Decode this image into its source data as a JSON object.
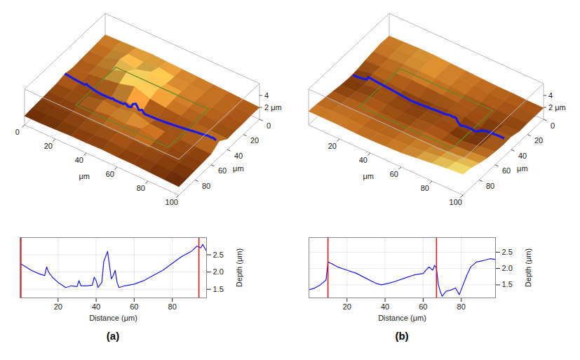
{
  "chart_data": [
    {
      "type": "surface3d",
      "xlim": [
        0,
        100
      ],
      "ylim": [
        0,
        100
      ],
      "zlim": [
        0,
        6
      ],
      "xticks": [
        0,
        20,
        40,
        60,
        80,
        100
      ],
      "yticks": [
        0,
        20,
        40,
        60,
        80
      ],
      "zticks": [
        {
          "value": 2,
          "label": "2 μm"
        },
        4
      ],
      "x_label": "μm",
      "y_label": "μm",
      "x": [
        0,
        10,
        20,
        30,
        40,
        50,
        60,
        70,
        80,
        90,
        100
      ],
      "y": [
        0,
        10,
        20,
        30,
        40,
        50,
        60,
        70,
        80,
        90,
        100
      ],
      "z": [
        [
          2.4,
          2.5,
          2.6,
          2.7,
          2.6,
          2.5,
          2.4,
          2.3,
          2.2,
          2.1,
          2.0
        ],
        [
          2.3,
          2.4,
          2.8,
          2.6,
          2.9,
          2.5,
          2.4,
          2.3,
          2.2,
          2.1,
          2.0
        ],
        [
          2.2,
          2.3,
          3.2,
          2.7,
          3.4,
          2.6,
          2.5,
          2.3,
          2.2,
          2.0,
          1.9
        ],
        [
          2.1,
          2.2,
          2.6,
          3.6,
          2.8,
          3.0,
          2.4,
          2.2,
          2.1,
          2.0,
          1.9
        ],
        [
          2.0,
          2.1,
          2.4,
          2.8,
          3.5,
          2.6,
          2.3,
          2.1,
          2.0,
          1.9,
          1.8
        ],
        [
          2.2,
          1.9,
          1.6,
          1.7,
          2.2,
          1.6,
          1.7,
          1.9,
          2.2,
          2.5,
          2.7
        ],
        [
          1.9,
          1.9,
          2.0,
          2.5,
          2.3,
          2.9,
          2.2,
          2.0,
          1.9,
          1.8,
          1.8
        ],
        [
          1.8,
          1.8,
          1.9,
          2.1,
          2.4,
          2.2,
          2.6,
          2.0,
          1.9,
          1.8,
          1.7
        ],
        [
          1.7,
          1.7,
          1.8,
          1.9,
          2.0,
          2.1,
          2.0,
          1.9,
          1.8,
          1.7,
          1.6
        ],
        [
          1.6,
          1.6,
          1.7,
          1.8,
          1.8,
          1.9,
          1.8,
          1.8,
          1.7,
          1.6,
          1.5
        ],
        [
          1.5,
          1.5,
          1.6,
          1.7,
          1.7,
          1.8,
          1.7,
          1.7,
          1.6,
          1.5,
          1.4
        ]
      ],
      "roi": {
        "x": [
          20,
          80
        ],
        "y": [
          25,
          75
        ],
        "z": 2.5
      },
      "profile_y": 50
    },
    {
      "type": "line",
      "panel_label": "(a)",
      "x_label": "Distance (μm)",
      "y_label": "Depth (μm)",
      "xlim": [
        0,
        98
      ],
      "ylim": [
        1.25,
        3.0
      ],
      "xticks": [
        20,
        40,
        60,
        80
      ],
      "yticks": [
        1.5,
        {
          "value": 2,
          "label": "2.0"
        },
        2.5
      ],
      "grid": true,
      "color": "#1a1aee",
      "x": [
        0,
        3,
        6,
        10,
        13,
        14,
        15,
        17,
        20,
        24,
        27,
        30,
        31,
        32,
        35,
        38,
        39,
        40,
        41,
        43,
        44,
        45,
        46,
        47,
        48,
        49,
        50,
        51,
        52,
        55,
        60,
        65,
        70,
        75,
        80,
        85,
        90,
        93,
        95,
        96,
        98
      ],
      "values": [
        2.25,
        2.15,
        2.05,
        1.95,
        1.9,
        2.15,
        2.0,
        1.85,
        1.7,
        1.55,
        1.6,
        1.58,
        1.75,
        1.6,
        1.6,
        1.62,
        1.85,
        1.75,
        1.55,
        1.7,
        2.3,
        2.45,
        2.6,
        2.2,
        1.8,
        1.9,
        2.05,
        1.7,
        1.55,
        1.6,
        1.65,
        1.75,
        1.9,
        2.05,
        2.25,
        2.45,
        2.6,
        2.75,
        2.7,
        2.8,
        2.6
      ],
      "cursors": {
        "values": [
          0.5,
          94
        ],
        "color": "#e31a1c"
      }
    },
    {
      "type": "surface3d",
      "xlim": [
        0,
        100
      ],
      "ylim": [
        0,
        100
      ],
      "zlim": [
        0,
        6
      ],
      "xticks": [
        20,
        40,
        60,
        80,
        100
      ],
      "yticks": [
        0,
        20,
        40,
        60,
        80
      ],
      "zticks": [
        {
          "value": 2,
          "label": "2 μm"
        },
        4
      ],
      "x_label": "μm",
      "y_label": "μm",
      "x": [
        0,
        10,
        20,
        30,
        40,
        50,
        60,
        70,
        80,
        90,
        100
      ],
      "y": [
        0,
        10,
        20,
        30,
        40,
        50,
        60,
        70,
        80,
        90,
        100
      ],
      "z": [
        [
          2.2,
          2.3,
          2.4,
          2.4,
          2.3,
          2.2,
          2.1,
          2.0,
          2.0,
          1.9,
          1.9
        ],
        [
          2.3,
          2.4,
          2.5,
          2.6,
          2.4,
          2.3,
          2.2,
          2.1,
          2.0,
          1.9,
          1.9
        ],
        [
          2.1,
          2.2,
          2.3,
          2.4,
          2.3,
          2.2,
          2.0,
          1.9,
          1.8,
          1.8,
          1.9
        ],
        [
          1.9,
          2.0,
          2.1,
          2.2,
          2.1,
          2.0,
          1.9,
          1.8,
          1.7,
          1.6,
          1.8
        ],
        [
          1.6,
          2.1,
          1.9,
          1.7,
          1.6,
          1.7,
          1.9,
          2.0,
          1.4,
          1.9,
          2.2
        ],
        [
          1.5,
          1.6,
          1.8,
          1.7,
          1.6,
          1.7,
          1.8,
          1.5,
          1.3,
          1.8,
          2.1
        ],
        [
          1.6,
          1.7,
          1.9,
          1.8,
          1.7,
          1.8,
          1.9,
          1.7,
          1.5,
          1.9,
          2.2
        ],
        [
          1.8,
          1.9,
          2.0,
          1.9,
          1.8,
          1.9,
          2.0,
          1.9,
          2.0,
          2.2,
          2.4
        ],
        [
          2.0,
          2.1,
          2.1,
          2.0,
          2.0,
          2.1,
          2.2,
          2.2,
          2.4,
          2.6,
          2.8
        ],
        [
          2.2,
          2.2,
          2.2,
          2.1,
          2.1,
          2.2,
          2.3,
          2.5,
          2.8,
          3.1,
          3.3
        ],
        [
          2.3,
          2.3,
          2.3,
          2.2,
          2.2,
          2.3,
          2.4,
          2.7,
          3.0,
          3.3,
          3.5
        ]
      ],
      "roi": {
        "x": [
          20,
          80
        ],
        "y": [
          25,
          75
        ],
        "z": 2.3
      },
      "profile_y": 45
    },
    {
      "type": "line",
      "panel_label": "(b)",
      "x_label": "Distance (μm)",
      "y_label": "Depth (μm)",
      "xlim": [
        0,
        98
      ],
      "ylim": [
        1.1,
        2.95
      ],
      "xticks": [
        20,
        40,
        60,
        80
      ],
      "yticks": [
        1.5,
        {
          "value": 2,
          "label": "2.0"
        },
        2.5
      ],
      "grid": true,
      "color": "#1a1aee",
      "x": [
        0,
        3,
        6,
        9,
        10,
        12,
        15,
        20,
        25,
        30,
        35,
        38,
        42,
        45,
        50,
        55,
        60,
        63,
        65,
        66,
        67,
        68,
        69,
        70,
        72,
        75,
        77,
        79,
        81,
        83,
        85,
        88,
        92,
        95,
        98
      ],
      "values": [
        1.35,
        1.4,
        1.5,
        1.65,
        2.2,
        2.15,
        2.05,
        1.95,
        1.85,
        1.7,
        1.55,
        1.5,
        1.55,
        1.6,
        1.7,
        1.8,
        1.85,
        2.05,
        1.95,
        2.1,
        2.0,
        1.5,
        1.3,
        1.15,
        1.3,
        1.35,
        1.4,
        1.2,
        1.5,
        1.8,
        2.05,
        2.2,
        2.25,
        2.3,
        2.28
      ],
      "cursors": {
        "values": [
          10,
          67
        ],
        "color": "#e31a1c"
      }
    }
  ]
}
